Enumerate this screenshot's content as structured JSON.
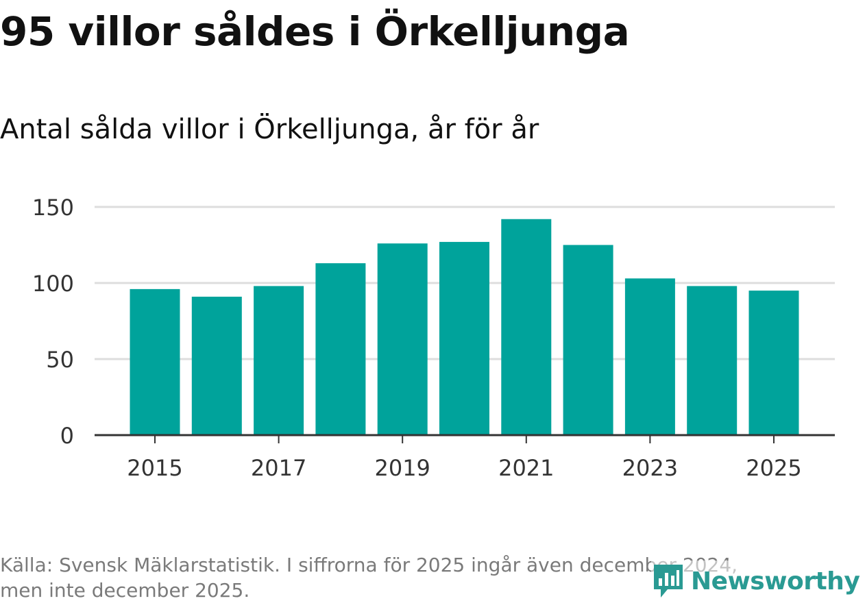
{
  "title": "95 villor såldes i Örkelljunga",
  "subtitle": "Antal sålda villor i Örkelljunga, år för år",
  "source_line1": "Källa: Svensk Mäklarstatistik. I siffrorna för 2025 ingår även december 2024,",
  "source_line2": "men inte december 2025.",
  "logo": {
    "text": "Newsworthy",
    "icon": "bar-chart-speech-bubble-icon"
  },
  "colors": {
    "bar": "#00a39b",
    "grid": "#dddddd",
    "axis": "#333333",
    "logo": "#2a9a93"
  },
  "chart_data": {
    "type": "bar",
    "title": "95 villor såldes i Örkelljunga",
    "subtitle": "Antal sålda villor i Örkelljunga, år för år",
    "xlabel": "",
    "ylabel": "",
    "ylim": [
      0,
      150
    ],
    "yticks": [
      0,
      50,
      100,
      150
    ],
    "categories": [
      "2015",
      "2016",
      "2017",
      "2018",
      "2019",
      "2020",
      "2021",
      "2022",
      "2023",
      "2024",
      "2025"
    ],
    "xtick_labels": [
      "2015",
      "2017",
      "2019",
      "2021",
      "2023",
      "2025"
    ],
    "values": [
      96,
      91,
      98,
      113,
      126,
      127,
      142,
      125,
      103,
      98,
      95
    ],
    "grid": true
  }
}
